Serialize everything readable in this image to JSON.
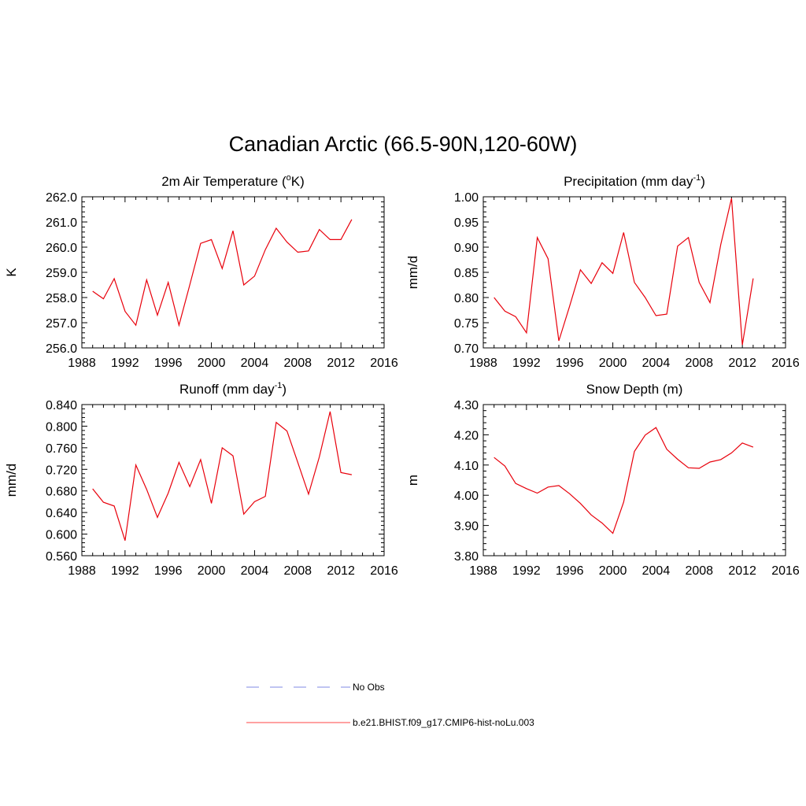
{
  "title": "Canadian Arctic (66.5-90N,120-60W)",
  "legend": [
    {
      "label": "No Obs",
      "color": "#aab0ee",
      "dash": true
    },
    {
      "label": "b.e21.BHIST.f09_g17.CMIP6-hist-noLu.003",
      "color": "#ff6b6b",
      "dash": false
    }
  ],
  "line_color": "#e8000b",
  "chart_data": [
    {
      "type": "line",
      "title": "2m Air Temperature (°K)",
      "title_parts": [
        "2m Air Temperature (",
        "o",
        "K)"
      ],
      "ylabel": "K",
      "xlim": [
        1988,
        2016
      ],
      "ylim": [
        256.0,
        262.0
      ],
      "xticks": [
        1988,
        1992,
        1996,
        2000,
        2004,
        2008,
        2012,
        2016
      ],
      "yticks": [
        "256.0",
        "257.0",
        "258.0",
        "259.0",
        "260.0",
        "261.0",
        "262.0"
      ],
      "x": [
        1989,
        1990,
        1991,
        1992,
        1993,
        1994,
        1995,
        1996,
        1997,
        1998,
        1999,
        2000,
        2001,
        2002,
        2003,
        2004,
        2005,
        2006,
        2007,
        2008,
        2009,
        2010,
        2011,
        2012,
        2013
      ],
      "series": [
        {
          "values": [
            258.25,
            257.95,
            258.75,
            257.45,
            256.9,
            258.7,
            257.3,
            258.6,
            256.9,
            258.5,
            260.15,
            260.3,
            259.15,
            260.65,
            258.5,
            258.85,
            259.9,
            260.75,
            260.2,
            259.8,
            259.85,
            260.7,
            260.3,
            260.3,
            261.1
          ]
        }
      ]
    },
    {
      "type": "line",
      "title": "Precipitation (mm day-1)",
      "title_parts": [
        "Precipitation (mm day",
        "-1",
        ")"
      ],
      "ylabel": "mm/d",
      "xlim": [
        1988,
        2016
      ],
      "ylim": [
        0.7,
        1.0
      ],
      "xticks": [
        1988,
        1992,
        1996,
        2000,
        2004,
        2008,
        2012,
        2016
      ],
      "yticks": [
        "0.70",
        "0.75",
        "0.80",
        "0.85",
        "0.90",
        "0.95",
        "1.00"
      ],
      "x": [
        1989,
        1990,
        1991,
        1992,
        1993,
        1994,
        1995,
        1996,
        1997,
        1998,
        1999,
        2000,
        2001,
        2002,
        2003,
        2004,
        2005,
        2006,
        2007,
        2008,
        2009,
        2010,
        2011,
        2012,
        2013
      ],
      "series": [
        {
          "values": [
            0.8,
            0.773,
            0.762,
            0.73,
            0.919,
            0.877,
            0.714,
            0.783,
            0.855,
            0.828,
            0.869,
            0.848,
            0.929,
            0.83,
            0.8,
            0.764,
            0.767,
            0.902,
            0.919,
            0.83,
            0.79,
            0.905,
            0.997,
            0.706,
            0.838
          ]
        }
      ]
    },
    {
      "type": "line",
      "title": "Runoff (mm day-1)",
      "title_parts": [
        "Runoff (mm day",
        "-1",
        ")"
      ],
      "ylabel": "mm/d",
      "xlim": [
        1988,
        2016
      ],
      "ylim": [
        0.56,
        0.84
      ],
      "xticks": [
        1988,
        1992,
        1996,
        2000,
        2004,
        2008,
        2012,
        2016
      ],
      "yticks": [
        "0.560",
        "0.600",
        "0.640",
        "0.680",
        "0.720",
        "0.760",
        "0.800",
        "0.840"
      ],
      "x": [
        1989,
        1990,
        1991,
        1992,
        1993,
        1994,
        1995,
        1996,
        1997,
        1998,
        1999,
        2000,
        2001,
        2002,
        2003,
        2004,
        2005,
        2006,
        2007,
        2008,
        2009,
        2010,
        2011,
        2012,
        2013
      ],
      "series": [
        {
          "values": [
            0.684,
            0.659,
            0.652,
            0.588,
            0.728,
            0.683,
            0.631,
            0.676,
            0.733,
            0.688,
            0.738,
            0.657,
            0.76,
            0.745,
            0.637,
            0.66,
            0.67,
            0.807,
            0.791,
            0.733,
            0.674,
            0.743,
            0.827,
            0.714,
            0.71
          ]
        }
      ]
    },
    {
      "type": "line",
      "title": "Snow Depth (m)",
      "title_parts": [
        "Snow Depth (m)",
        "",
        ""
      ],
      "ylabel": "m",
      "xlim": [
        1988,
        2016
      ],
      "ylim": [
        3.8,
        4.3
      ],
      "xticks": [
        1988,
        1992,
        1996,
        2000,
        2004,
        2008,
        2012,
        2016
      ],
      "yticks": [
        "3.80",
        "3.90",
        "4.00",
        "4.10",
        "4.20",
        "4.30"
      ],
      "x": [
        1989,
        1990,
        1991,
        1992,
        1993,
        1994,
        1995,
        1996,
        1997,
        1998,
        1999,
        2000,
        2001,
        2002,
        2003,
        2004,
        2005,
        2006,
        2007,
        2008,
        2009,
        2010,
        2011,
        2012,
        2013
      ],
      "series": [
        {
          "values": [
            4.125,
            4.097,
            4.039,
            4.022,
            4.007,
            4.027,
            4.032,
            4.005,
            3.973,
            3.935,
            3.908,
            3.874,
            3.977,
            4.145,
            4.199,
            4.224,
            4.152,
            4.119,
            4.091,
            4.089,
            4.11,
            4.118,
            4.14,
            4.173,
            4.159
          ]
        }
      ]
    }
  ]
}
